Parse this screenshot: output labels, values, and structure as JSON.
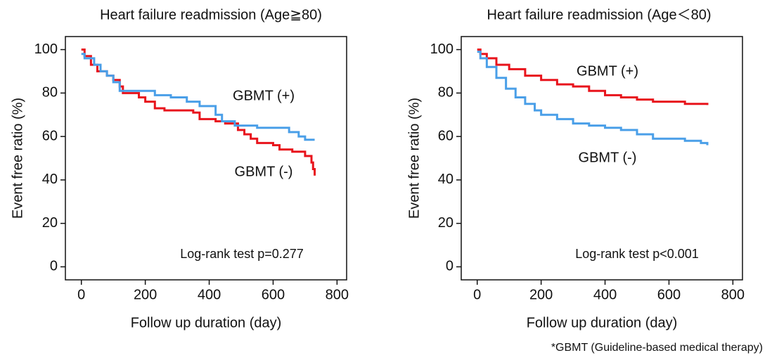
{
  "chart_data": [
    {
      "type": "line",
      "step": true,
      "title": "Heart failure readmission (Age≧80)",
      "x_label": "Follow up duration (day)",
      "y_label": "Event free ratio (%)",
      "xlim": [
        -50,
        830
      ],
      "ylim": [
        -6,
        106
      ],
      "xticks": [
        0,
        200,
        400,
        600,
        800
      ],
      "yticks": [
        0,
        20,
        40,
        60,
        80,
        100
      ],
      "series": [
        {
          "name": "GBMT (+)",
          "color": "#e8141c",
          "x": [
            0,
            10,
            30,
            50,
            80,
            100,
            120,
            130,
            180,
            200,
            230,
            260,
            350,
            370,
            420,
            450,
            490,
            510,
            530,
            550,
            600,
            620,
            660,
            700,
            720,
            725,
            730
          ],
          "values": [
            100,
            97,
            93,
            90,
            88,
            86,
            83,
            80,
            78,
            76,
            73,
            72,
            71,
            68,
            67,
            66,
            63,
            61,
            59,
            57,
            56,
            54,
            53,
            51,
            48,
            45,
            42
          ]
        },
        {
          "name": "GBMT (-)",
          "color": "#4a9fe8",
          "x": [
            0,
            10,
            40,
            60,
            80,
            100,
            120,
            200,
            230,
            280,
            330,
            370,
            420,
            440,
            480,
            550,
            650,
            680,
            700,
            730
          ],
          "values": [
            98,
            96,
            93,
            90,
            88,
            85,
            81,
            81,
            79,
            78,
            76,
            74,
            70,
            67,
            65,
            64,
            62,
            60,
            58.5,
            58.5
          ]
        }
      ],
      "annotations": [
        "Log-rank test p=0.277"
      ]
    },
    {
      "type": "line",
      "step": true,
      "title": "Heart failure readmission (Age＜80)",
      "x_label": "Follow up duration (day)",
      "y_label": "Event free ratio (%)",
      "xlim": [
        -50,
        830
      ],
      "ylim": [
        -6,
        106
      ],
      "xticks": [
        0,
        200,
        400,
        600,
        800
      ],
      "yticks": [
        0,
        20,
        40,
        60,
        80,
        100
      ],
      "series": [
        {
          "name": "GBMT (+)",
          "color": "#e8141c",
          "x": [
            0,
            10,
            30,
            60,
            100,
            150,
            200,
            250,
            300,
            350,
            400,
            450,
            500,
            550,
            600,
            650,
            700,
            720
          ],
          "values": [
            100,
            98,
            96,
            93,
            91,
            88,
            86,
            84,
            83,
            81,
            79,
            78,
            77,
            76,
            76,
            75,
            75,
            74.5
          ]
        },
        {
          "name": "GBMT (-)",
          "color": "#4a9fe8",
          "x": [
            0,
            10,
            30,
            60,
            90,
            120,
            150,
            180,
            200,
            250,
            300,
            350,
            400,
            450,
            500,
            550,
            600,
            650,
            700,
            720
          ],
          "values": [
            99,
            96,
            92,
            87,
            82,
            78,
            75,
            72,
            70,
            68,
            66,
            65,
            64,
            63,
            61,
            59,
            59,
            58,
            57,
            56
          ]
        }
      ],
      "annotations": [
        "Log-rank test p<0.001"
      ]
    }
  ],
  "footnote": "*GBMT (Guideline-based medical therapy)"
}
